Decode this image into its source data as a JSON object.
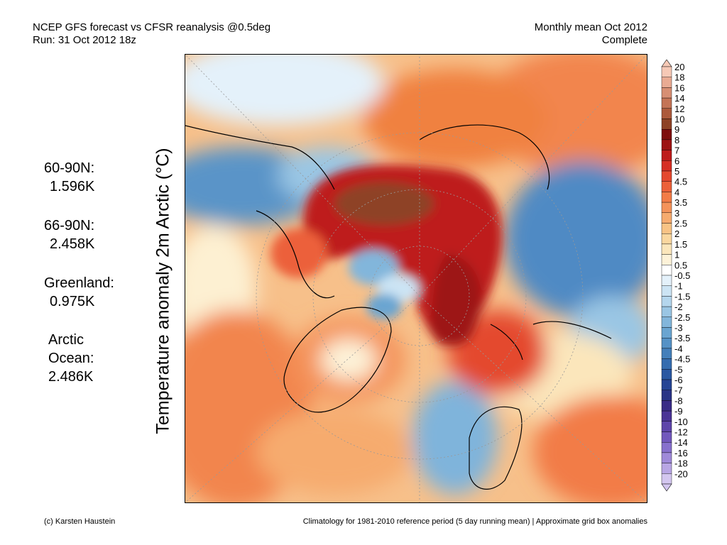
{
  "header": {
    "title_line1": "NCEP GFS forecast vs CFSR reanalysis @0.5deg",
    "title_line2": "Run: 31 Oct 2012 18z",
    "period_line1": "Monthly mean Oct 2012",
    "period_line2": "Complete"
  },
  "ylabel": "Temperature anomaly 2m Arctic (°C)",
  "stats": [
    {
      "label": "60-90N:",
      "value": "1.596K"
    },
    {
      "label": "66-90N:",
      "value": "2.458K"
    },
    {
      "label": "Greenland:",
      "value": "0.975K"
    },
    {
      "label": "Arctic\nOcean:",
      "value": "2.486K"
    }
  ],
  "legend": {
    "labels": [
      "20",
      "18",
      "16",
      "14",
      "12",
      "10",
      "9",
      "8",
      "7",
      "6",
      "5",
      "4.5",
      "4",
      "3.5",
      "3",
      "2.5",
      "2",
      "1.5",
      "1",
      "0.5",
      "-0.5",
      "-1",
      "-1.5",
      "-2",
      "-2.5",
      "-3",
      "-3.5",
      "-4",
      "-4.5",
      "-5",
      "-6",
      "-7",
      "-8",
      "-9",
      "-10",
      "-12",
      "-14",
      "-16",
      "-18",
      "-20"
    ],
    "colors": [
      "#f6c9b6",
      "#e9ab93",
      "#d78f73",
      "#c47456",
      "#ac5a3c",
      "#8e4225",
      "#7e0d0d",
      "#9d1313",
      "#be1c1c",
      "#d62f25",
      "#e4482f",
      "#ec613a",
      "#f27c47",
      "#f4935a",
      "#f6ab6e",
      "#f8c385",
      "#fad79f",
      "#fbe6bb",
      "#fdf2d8",
      "#ffffff",
      "#e4f1fa",
      "#cce4f4",
      "#b4d6ed",
      "#9ac6e4",
      "#82b6db",
      "#6aa5d1",
      "#5592c6",
      "#447fba",
      "#356caf",
      "#2a58a2",
      "#264595",
      "#2a3486",
      "#3a2c87",
      "#4b3496",
      "#5e45aa",
      "#7258bd",
      "#8770cd",
      "#9f8ad9",
      "#b8a6e4",
      "#d3c6ef"
    ]
  },
  "footer": {
    "left": "(c) Karsten Haustein",
    "right": "Climatology for 1981-2010 reference period (5 day running mean) | Approximate grid box anomalies"
  }
}
